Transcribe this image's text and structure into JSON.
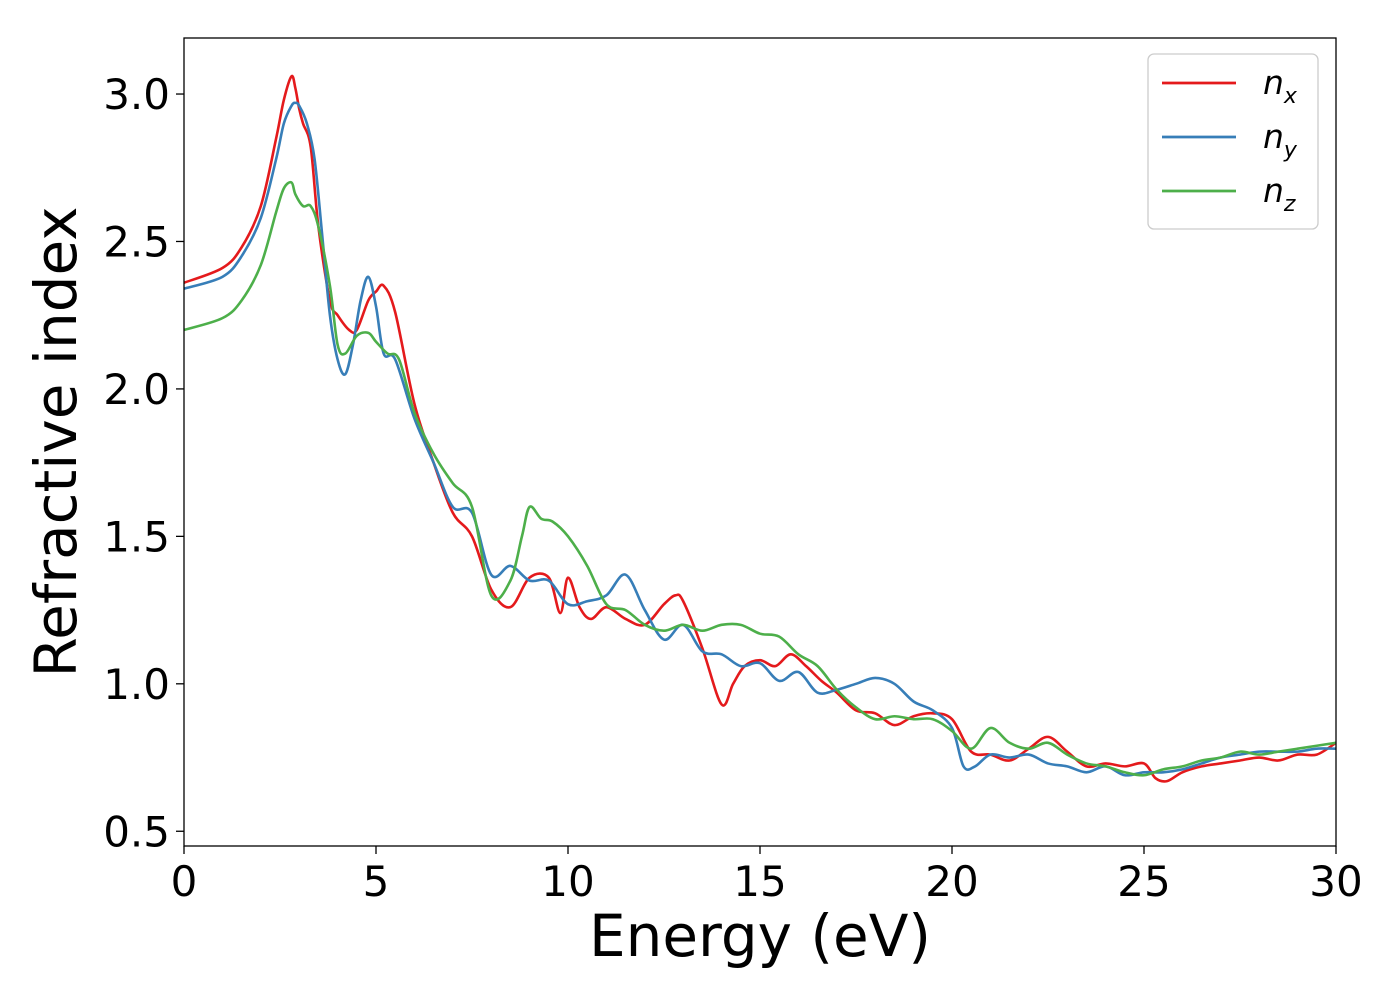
{
  "chart_data": {
    "type": "line",
    "xlabel": "Energy (eV)",
    "ylabel": "Refractive index",
    "xlim": [
      0,
      30
    ],
    "ylim": [
      0.45,
      3.19
    ],
    "xticks": [
      0,
      5,
      10,
      15,
      20,
      25,
      30
    ],
    "xtick_labels": [
      "0",
      "5",
      "10",
      "15",
      "20",
      "25",
      "30"
    ],
    "yticks": [
      0.5,
      1.0,
      1.5,
      2.0,
      2.5,
      3.0
    ],
    "ytick_labels": [
      "0.5",
      "1.0",
      "1.5",
      "2.0",
      "2.5",
      "3.0"
    ],
    "grid": false,
    "legend_position": "upper-right",
    "series": [
      {
        "name": "n_x",
        "label_main": "n",
        "label_sub": "x",
        "color": "#e41a1c",
        "x": [
          0,
          1,
          1.5,
          2,
          2.4,
          2.6,
          2.8,
          2.9,
          3.0,
          3.1,
          3.3,
          3.5,
          3.8,
          4.0,
          4.3,
          4.5,
          4.8,
          5.0,
          5.2,
          5.5,
          6.0,
          6.5,
          7.0,
          7.5,
          8.0,
          8.5,
          9.0,
          9.5,
          9.8,
          10.0,
          10.3,
          10.6,
          11.0,
          11.5,
          12.0,
          12.5,
          12.8,
          13.0,
          13.5,
          14.0,
          14.3,
          14.6,
          15.0,
          15.4,
          15.8,
          16.2,
          16.6,
          17.0,
          17.5,
          18.0,
          18.5,
          19.0,
          19.5,
          20.0,
          20.5,
          21.0,
          21.5,
          22.0,
          22.5,
          23.0,
          23.5,
          24.0,
          24.5,
          25.0,
          25.3,
          25.6,
          26.0,
          26.5,
          27.0,
          27.5,
          28.0,
          28.5,
          29.0,
          29.5,
          30.0
        ],
        "y": [
          2.36,
          2.41,
          2.48,
          2.62,
          2.85,
          2.98,
          3.06,
          3.02,
          2.95,
          2.9,
          2.82,
          2.55,
          2.3,
          2.25,
          2.2,
          2.2,
          2.3,
          2.33,
          2.35,
          2.26,
          1.95,
          1.75,
          1.58,
          1.5,
          1.32,
          1.26,
          1.36,
          1.36,
          1.24,
          1.36,
          1.26,
          1.22,
          1.26,
          1.22,
          1.2,
          1.27,
          1.3,
          1.28,
          1.12,
          0.93,
          1.0,
          1.06,
          1.08,
          1.06,
          1.1,
          1.06,
          1.01,
          0.97,
          0.91,
          0.9,
          0.86,
          0.89,
          0.9,
          0.88,
          0.77,
          0.76,
          0.74,
          0.78,
          0.82,
          0.77,
          0.72,
          0.73,
          0.72,
          0.73,
          0.68,
          0.67,
          0.7,
          0.72,
          0.73,
          0.74,
          0.75,
          0.74,
          0.76,
          0.76,
          0.8
        ]
      },
      {
        "name": "n_y",
        "label_main": "n",
        "label_sub": "y",
        "color": "#377eb8",
        "x": [
          0,
          1,
          1.5,
          2,
          2.4,
          2.6,
          2.8,
          2.9,
          3.0,
          3.2,
          3.4,
          3.6,
          3.8,
          4.0,
          4.2,
          4.4,
          4.6,
          4.8,
          5.0,
          5.2,
          5.5,
          6.0,
          6.5,
          7.0,
          7.5,
          8.0,
          8.5,
          9.0,
          9.5,
          10.0,
          10.5,
          11.0,
          11.5,
          12.0,
          12.5,
          13.0,
          13.5,
          14.0,
          14.5,
          15.0,
          15.5,
          16.0,
          16.5,
          17.0,
          17.5,
          18.0,
          18.5,
          19.0,
          19.5,
          20.0,
          20.3,
          20.6,
          21.0,
          21.5,
          22.0,
          22.5,
          23.0,
          23.5,
          24.0,
          24.5,
          25.0,
          25.5,
          26.0,
          26.5,
          27.0,
          27.5,
          28.0,
          28.5,
          29.0,
          29.5,
          30.0
        ],
        "y": [
          2.34,
          2.38,
          2.45,
          2.58,
          2.78,
          2.9,
          2.96,
          2.97,
          2.96,
          2.9,
          2.78,
          2.52,
          2.25,
          2.1,
          2.05,
          2.15,
          2.3,
          2.38,
          2.28,
          2.12,
          2.1,
          1.9,
          1.75,
          1.6,
          1.58,
          1.37,
          1.4,
          1.35,
          1.35,
          1.27,
          1.28,
          1.3,
          1.37,
          1.25,
          1.15,
          1.2,
          1.11,
          1.1,
          1.06,
          1.07,
          1.01,
          1.04,
          0.97,
          0.98,
          1.0,
          1.02,
          1.0,
          0.94,
          0.91,
          0.85,
          0.72,
          0.72,
          0.76,
          0.75,
          0.76,
          0.73,
          0.72,
          0.7,
          0.72,
          0.69,
          0.7,
          0.7,
          0.71,
          0.73,
          0.75,
          0.76,
          0.77,
          0.77,
          0.77,
          0.78,
          0.78
        ]
      },
      {
        "name": "n_z",
        "label_main": "n",
        "label_sub": "z",
        "color": "#4daf4a",
        "x": [
          0,
          1,
          1.5,
          2,
          2.4,
          2.6,
          2.8,
          2.9,
          3.1,
          3.3,
          3.5,
          3.8,
          4.0,
          4.2,
          4.5,
          4.8,
          5.0,
          5.3,
          5.6,
          6.0,
          6.5,
          7.0,
          7.5,
          8.0,
          8.5,
          8.8,
          9.0,
          9.3,
          9.6,
          10.0,
          10.5,
          11.0,
          11.5,
          12.0,
          12.5,
          13.0,
          13.5,
          14.0,
          14.5,
          15.0,
          15.5,
          16.0,
          16.5,
          17.0,
          17.5,
          18.0,
          18.5,
          19.0,
          19.5,
          20.0,
          20.5,
          21.0,
          21.5,
          22.0,
          22.5,
          23.0,
          23.5,
          24.0,
          24.5,
          25.0,
          25.5,
          26.0,
          26.5,
          27.0,
          27.5,
          28.0,
          28.5,
          29.0,
          29.5,
          30.0
        ],
        "y": [
          2.2,
          2.24,
          2.3,
          2.42,
          2.6,
          2.68,
          2.7,
          2.66,
          2.62,
          2.62,
          2.55,
          2.35,
          2.15,
          2.12,
          2.18,
          2.19,
          2.16,
          2.12,
          2.1,
          1.92,
          1.78,
          1.68,
          1.6,
          1.3,
          1.35,
          1.5,
          1.6,
          1.56,
          1.55,
          1.5,
          1.4,
          1.27,
          1.25,
          1.2,
          1.18,
          1.2,
          1.18,
          1.2,
          1.2,
          1.17,
          1.16,
          1.1,
          1.06,
          0.98,
          0.92,
          0.88,
          0.89,
          0.88,
          0.88,
          0.84,
          0.78,
          0.85,
          0.8,
          0.78,
          0.8,
          0.76,
          0.73,
          0.72,
          0.7,
          0.69,
          0.71,
          0.72,
          0.74,
          0.75,
          0.77,
          0.76,
          0.77,
          0.78,
          0.79,
          0.8
        ]
      }
    ]
  }
}
